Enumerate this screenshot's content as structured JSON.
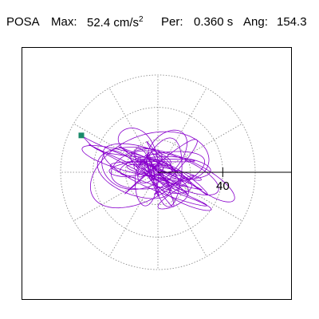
{
  "header": {
    "station": "POSA",
    "max_label": "Max:",
    "max_value": "52.4 cm/s",
    "max_exp": "2",
    "per_label": "Per:",
    "per_value": "0.360 s",
    "ang_label": "Ang:",
    "ang_value": "154.3"
  },
  "chart_data": {
    "type": "scatter",
    "title": "POSA  Max: 52.4 cm/s2  Per: 0.360 s  Ang: 154.3",
    "max_acceleration": 52.4,
    "max_acceleration_unit": "cm/s2",
    "period_s": 0.36,
    "angle_deg": 154.3,
    "polar_grid": {
      "rings": [
        20,
        40,
        60
      ],
      "spokes_deg": [
        0,
        30,
        60,
        90,
        120,
        150,
        180,
        210,
        240,
        270,
        300,
        330
      ],
      "style": "dotted",
      "label": "40",
      "label_value": 40
    },
    "axis_ray": {
      "angle_deg": 0
    },
    "max_point": {
      "r": 52.4,
      "angle_deg": 154.3
    },
    "trace_color": "#8800cc",
    "marker_color": "#1a8a6a",
    "grid_color": "#808080"
  }
}
